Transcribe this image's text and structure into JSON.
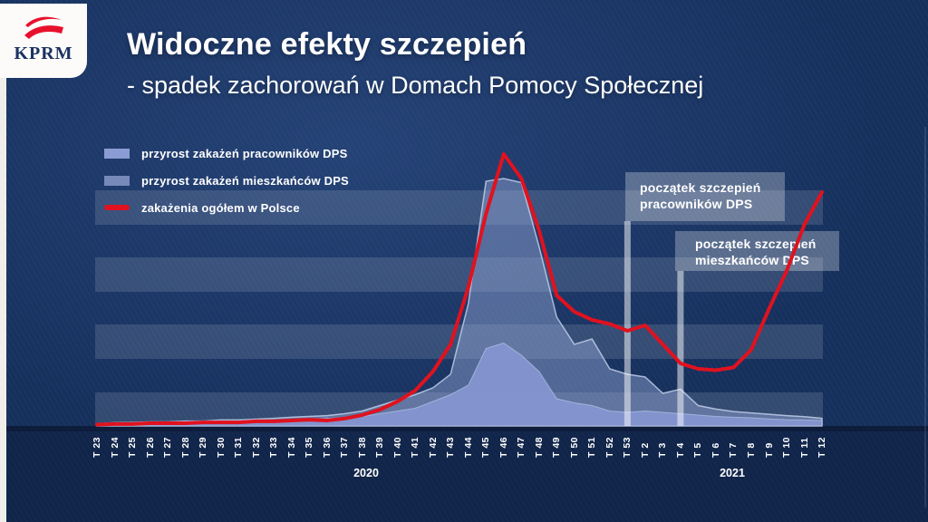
{
  "brand": {
    "logo_text": "KPRM"
  },
  "header": {
    "title": "Widoczne efekty szczepień",
    "subtitle": "- spadek zachorowań w Domach Pomocy Społecznej"
  },
  "legend": [
    {
      "label": "przyrost zakażeń pracowników DPS",
      "swatch": "#8b9cd4",
      "type": "area"
    },
    {
      "label": "przyrost zakażeń mieszkańców DPS",
      "swatch": "#7689b8",
      "type": "area"
    },
    {
      "label": "zakażenia ogółem w Polsce",
      "swatch": "#e0121f",
      "type": "line"
    }
  ],
  "annotations": [
    {
      "line1": "początek szczepień",
      "line2": "pracowników DPS",
      "week": "T 53"
    },
    {
      "line1": "początek szczepień",
      "line2": "mieszkańców DPS",
      "week": "T 4"
    }
  ],
  "chart_data": {
    "type": "area+line",
    "note": "values are relative (% of peak of national curve); no numeric y-axis is shown in the original",
    "categories": [
      "T 23",
      "T 24",
      "T 25",
      "T 26",
      "T 27",
      "T 28",
      "T 29",
      "T 30",
      "T 31",
      "T 32",
      "T 33",
      "T 34",
      "T 35",
      "T 36",
      "T 37",
      "T 38",
      "T 39",
      "T 40",
      "T 41",
      "T 42",
      "T 43",
      "T 44",
      "T 45",
      "T 46",
      "T 47",
      "T 48",
      "T 49",
      "T 50",
      "T 51",
      "T 52",
      "T 53",
      "T 2",
      "T 3",
      "T 4",
      "T 5",
      "T 6",
      "T 7",
      "T 8",
      "T 9",
      "T 10",
      "T 11",
      "T 12"
    ],
    "year_labels": [
      {
        "label": "2020",
        "spans": "T 23 – T 53"
      },
      {
        "label": "2021",
        "spans": "T 2 – T 12"
      }
    ],
    "series": [
      {
        "name": "przyrost zakażeń mieszkańców DPS",
        "type": "area",
        "layer": "back",
        "fill": "rgba(151,169,216,0.45)",
        "stroke": "rgba(199,212,239,0.8)",
        "values": [
          0.8,
          1.2,
          1.3,
          1.5,
          1.5,
          1.8,
          1.8,
          2.2,
          2.2,
          2.5,
          2.8,
          3.2,
          3.5,
          3.8,
          4.5,
          5.5,
          7.5,
          9.5,
          11.5,
          14,
          19,
          45,
          90,
          91,
          89.5,
          66,
          40,
          30,
          32,
          21,
          19,
          18,
          12,
          13.5,
          7.5,
          6.2,
          5.3,
          4.8,
          4.3,
          3.8,
          3.4,
          2.8
        ]
      },
      {
        "name": "przyrost zakażeń pracowników DPS",
        "type": "area",
        "layer": "front",
        "fill": "rgba(134,150,209,0.92)",
        "stroke": "rgba(182,196,232,0.7)",
        "values": [
          0.5,
          0.8,
          0.8,
          1,
          1,
          1.2,
          1.2,
          1.5,
          1.5,
          1.8,
          1.8,
          2.2,
          2.5,
          2.8,
          3,
          3.5,
          4.5,
          5.5,
          6.5,
          9,
          11.5,
          15,
          28.5,
          30.5,
          26,
          20,
          10,
          8.5,
          7.5,
          5.5,
          5,
          5.5,
          5,
          4.5,
          4,
          3.5,
          3.2,
          3,
          2.6,
          2.3,
          2.2,
          2
        ]
      },
      {
        "name": "zakażenia ogółem w Polsce",
        "type": "line",
        "stroke": "#e0121f",
        "values": [
          0.5,
          0.7,
          0.7,
          1,
          1,
          1,
          1.3,
          1.3,
          1.3,
          1.7,
          1.7,
          2,
          2.3,
          2,
          2.7,
          4,
          6,
          9,
          13,
          20,
          30,
          51,
          78,
          100,
          91,
          72,
          48,
          42,
          39,
          37.5,
          35,
          37,
          30,
          23,
          21,
          20.5,
          21.5,
          28,
          43,
          57,
          74,
          86
        ]
      }
    ],
    "markers": [
      {
        "week": "T 53",
        "meaning": "początek szczepień pracowników DPS"
      },
      {
        "week": "T 4",
        "meaning": "początek szczepień mieszkańców DPS"
      }
    ],
    "ylim": [
      0,
      100
    ],
    "grid": "horizontal translucent bands, no axis values"
  }
}
